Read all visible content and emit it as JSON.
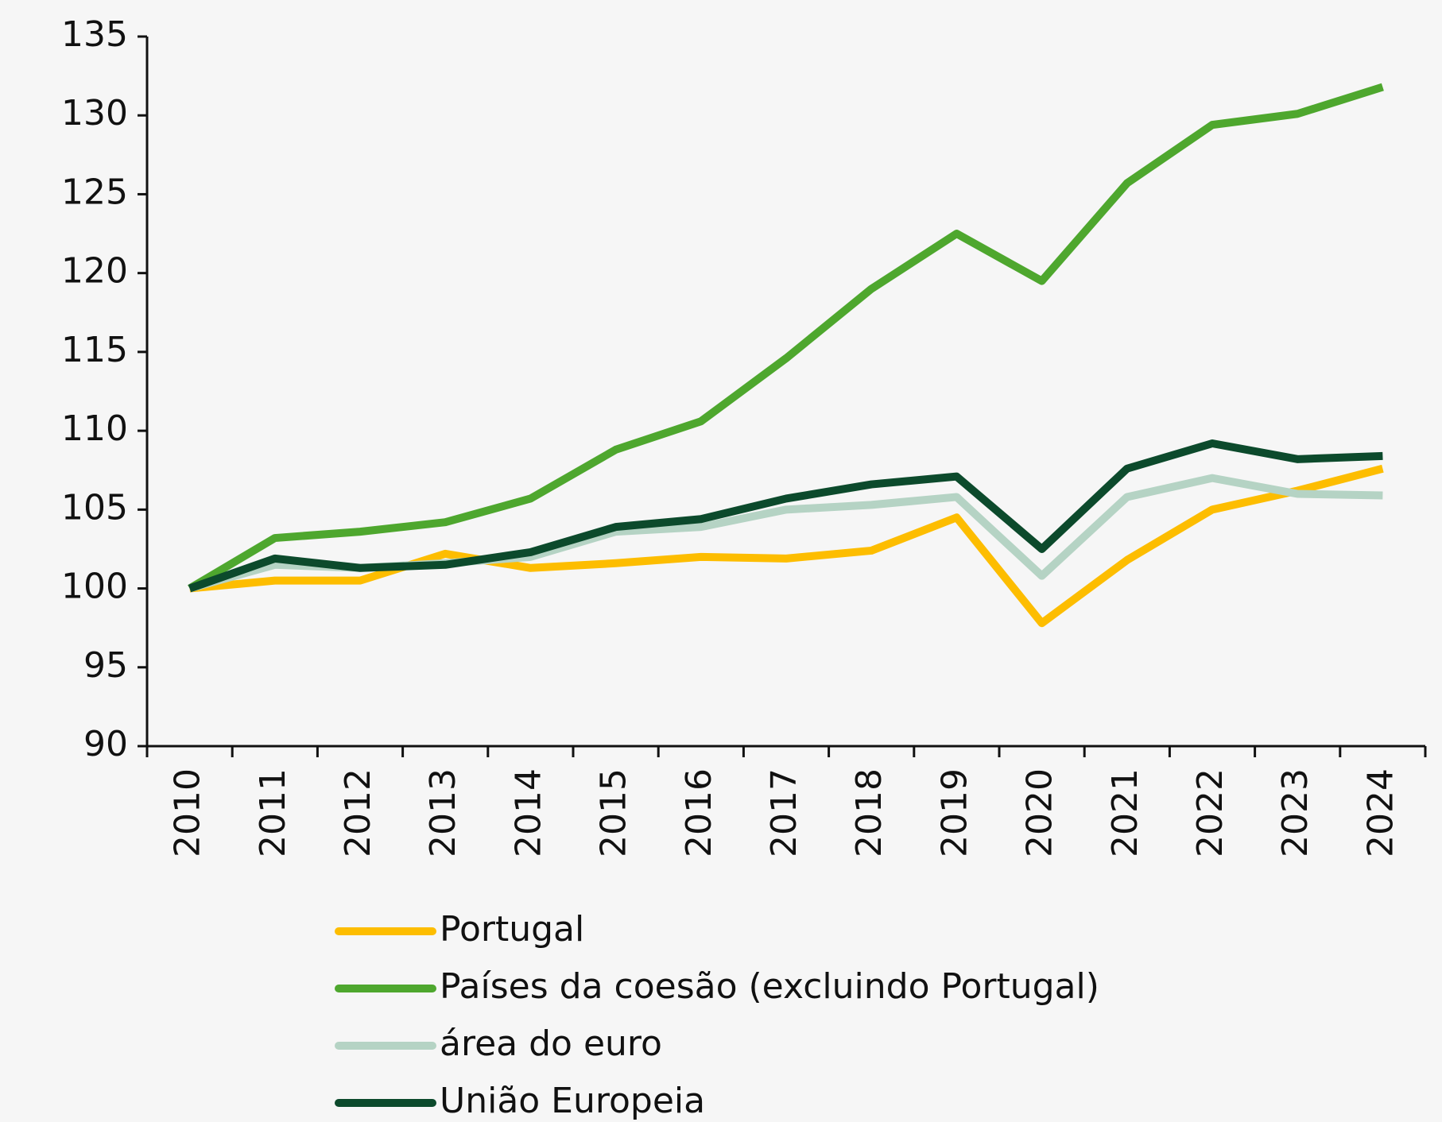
{
  "chart_data": {
    "type": "line",
    "categories": [
      "2010",
      "2011",
      "2012",
      "2013",
      "2014",
      "2015",
      "2016",
      "2017",
      "2018",
      "2019",
      "2020",
      "2021",
      "2022",
      "2023",
      "2024"
    ],
    "series": [
      {
        "name": "Portugal",
        "color": "#fdbd00",
        "values": [
          100,
          100.5,
          100.5,
          102.2,
          101.3,
          101.6,
          102,
          101.9,
          102.4,
          104.5,
          97.8,
          101.8,
          105,
          106.2,
          107.6
        ]
      },
      {
        "name": "Países da coesão (excluindo Portugal)",
        "color": "#4ea72e",
        "values": [
          100,
          103.2,
          103.6,
          104.2,
          105.7,
          108.8,
          110.6,
          114.6,
          119,
          122.5,
          119.5,
          125.7,
          129.4,
          130.1,
          131.8
        ]
      },
      {
        "name": "área do euro",
        "color": "#b5d3c4",
        "values": [
          100,
          101.5,
          101.3,
          101.6,
          102,
          103.6,
          103.9,
          105,
          105.3,
          105.8,
          100.8,
          105.8,
          107,
          106,
          105.9
        ]
      },
      {
        "name": "União Europeia",
        "color": "#0c4a2c",
        "values": [
          100,
          101.9,
          101.3,
          101.5,
          102.3,
          103.9,
          104.4,
          105.7,
          106.6,
          107.1,
          102.5,
          107.6,
          109.2,
          108.2,
          108.4
        ]
      }
    ],
    "ylim": [
      90,
      135
    ],
    "yticks": [
      90,
      95,
      100,
      105,
      110,
      115,
      120,
      125,
      130,
      135
    ],
    "legend": "bottom"
  }
}
